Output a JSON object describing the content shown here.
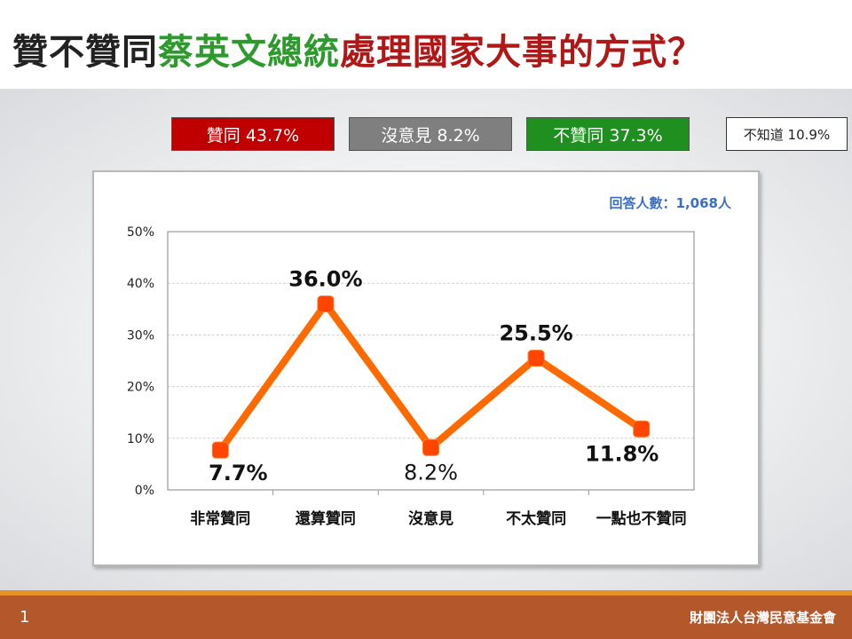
{
  "title": {
    "part1": "贊不贊同",
    "part2": "蔡英文總統",
    "part3": "處理國家大事的方式？"
  },
  "colors": {
    "red": "#c00000",
    "gray": "#7f7f7f",
    "green": "#1f8f1f",
    "line": "#ff6a00",
    "marker": "#ff4500",
    "respondents": "#3a6fc4",
    "footer": "#b4572a"
  },
  "summary": {
    "agree": "贊同 43.7%",
    "no_opinion": "沒意見 8.2%",
    "disagree": "不贊同 37.3%",
    "unknown": "不知道 10.9%"
  },
  "chart_data": {
    "type": "line",
    "categories": [
      "非常贊同",
      "還算贊同",
      "沒意見",
      "不太贊同",
      "一點也不贊同"
    ],
    "values": [
      7.7,
      36.0,
      8.2,
      25.5,
      11.8
    ],
    "data_labels": [
      "7.7%",
      "36.0%",
      "8.2%",
      "25.5%",
      "11.8%"
    ],
    "y_ticks": [
      "0%",
      "10%",
      "20%",
      "30%",
      "40%",
      "50%"
    ],
    "ylim": [
      0,
      50
    ],
    "grid": true,
    "respondents": "回答人數：1,068人"
  },
  "footer": {
    "page": "1",
    "org": "財團法人台灣民意基金會"
  }
}
